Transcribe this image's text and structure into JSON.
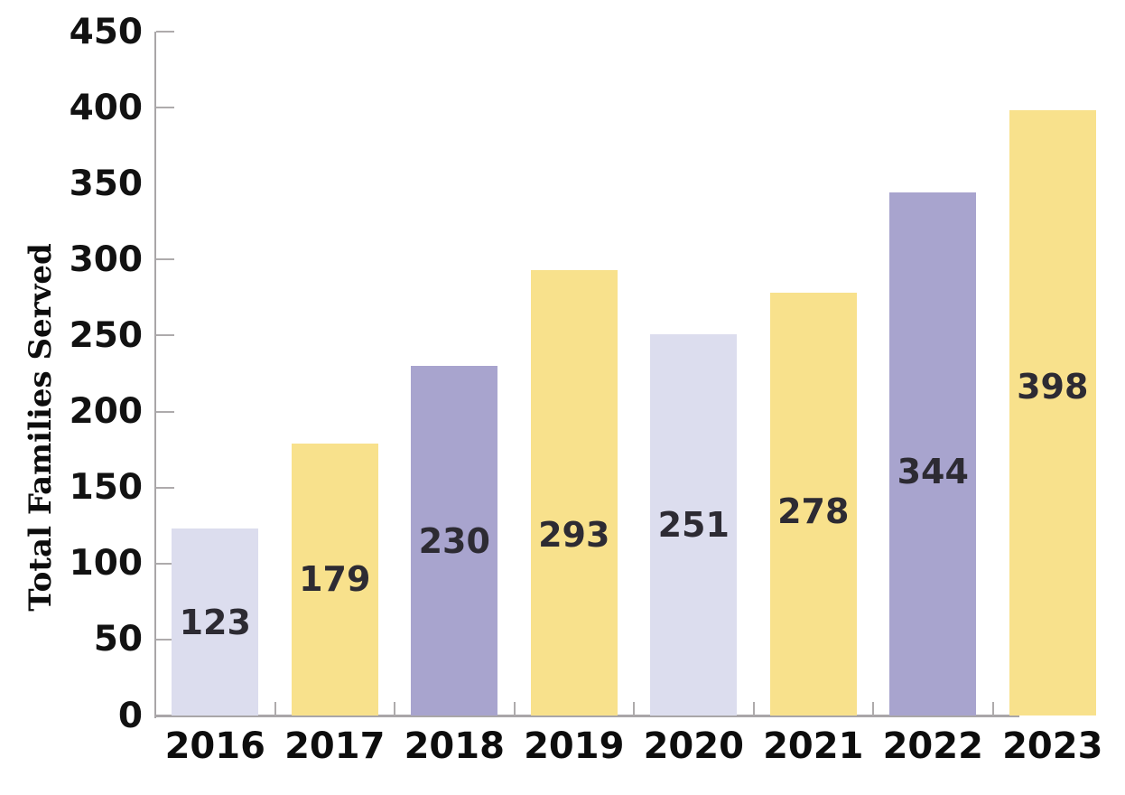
{
  "chart_data": {
    "type": "bar",
    "title": "",
    "xlabel": "",
    "ylabel": "Total Families Served",
    "categories": [
      "2016",
      "2017",
      "2018",
      "2019",
      "2020",
      "2021",
      "2022",
      "2023"
    ],
    "values": [
      123,
      179,
      230,
      293,
      251,
      278,
      344,
      398
    ],
    "bar_labels": [
      "123",
      "179",
      "230",
      "293",
      "251",
      "278",
      "344",
      "398"
    ],
    "ylim": [
      0,
      450
    ],
    "ytick_interval": 50,
    "ytick_labels": [
      "0",
      "50",
      "100",
      "150",
      "200",
      "250",
      "300",
      "350",
      "400",
      "450"
    ],
    "legend": "none",
    "grid": false,
    "palette": {
      "lavender": "#DCDDEE",
      "yellow": "#F8E18C",
      "purple": "#A8A4CE"
    },
    "bar_color_names": [
      "lavender",
      "yellow",
      "purple",
      "yellow",
      "lavender",
      "yellow",
      "purple",
      "yellow"
    ],
    "bar_colors": [
      "#DCDDEE",
      "#F8E18C",
      "#A8A4CE",
      "#F8E18C",
      "#DCDDEE",
      "#F8E18C",
      "#A8A4CE",
      "#F8E18C"
    ],
    "colors": {
      "axis": "#A9A6A8",
      "tick_label_text": "#121212",
      "bar_label_text": "#2D2B33",
      "background": "#FFFFFF"
    },
    "layout_hints": {
      "tick_mark_missing_at_value": 350,
      "x_tick_marks": "between-categories",
      "bar_label_position": "inside-bar",
      "bar_label_dy": [
        0,
        0,
        0,
        46,
        0,
        8,
        19,
        -29
      ],
      "rightmost_bar_clipped_at_image_edge": true
    }
  }
}
